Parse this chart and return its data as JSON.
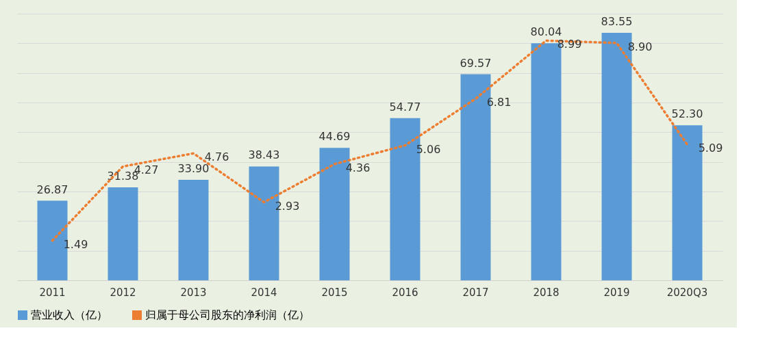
{
  "chart_data": {
    "type": "bar",
    "categories": [
      "2011",
      "2012",
      "2013",
      "2014",
      "2015",
      "2016",
      "2017",
      "2018",
      "2019",
      "2020Q3"
    ],
    "series": [
      {
        "name": "营业收入（亿）",
        "color": "#5b9bd5",
        "values": [
          26.87,
          31.38,
          33.9,
          38.43,
          44.69,
          54.77,
          69.57,
          80.04,
          83.55,
          52.3
        ],
        "value_labels": [
          "26.87",
          "31.38",
          "33.90",
          "38.43",
          "44.69",
          "54.77",
          "69.57",
          "80.04",
          "83.55",
          "52.30"
        ]
      },
      {
        "name": "归属于母公司股东的净利润（亿）",
        "type": "line",
        "axis": "y2",
        "color": "#ed7d31",
        "line_style": "dotted",
        "values": [
          1.49,
          4.27,
          4.76,
          2.93,
          4.36,
          5.06,
          6.81,
          8.99,
          8.9,
          5.09
        ],
        "value_labels": [
          "1.49",
          "4.27",
          "4.76",
          "2.93",
          "4.36",
          "5.06",
          "6.81",
          "8.99",
          "8.90",
          "5.09"
        ]
      }
    ],
    "ylim": [
      0,
      90
    ],
    "y2lim": [
      0,
      10
    ],
    "tick_labels": "x",
    "grid": "y",
    "legend": "bottom",
    "marker": "none"
  }
}
